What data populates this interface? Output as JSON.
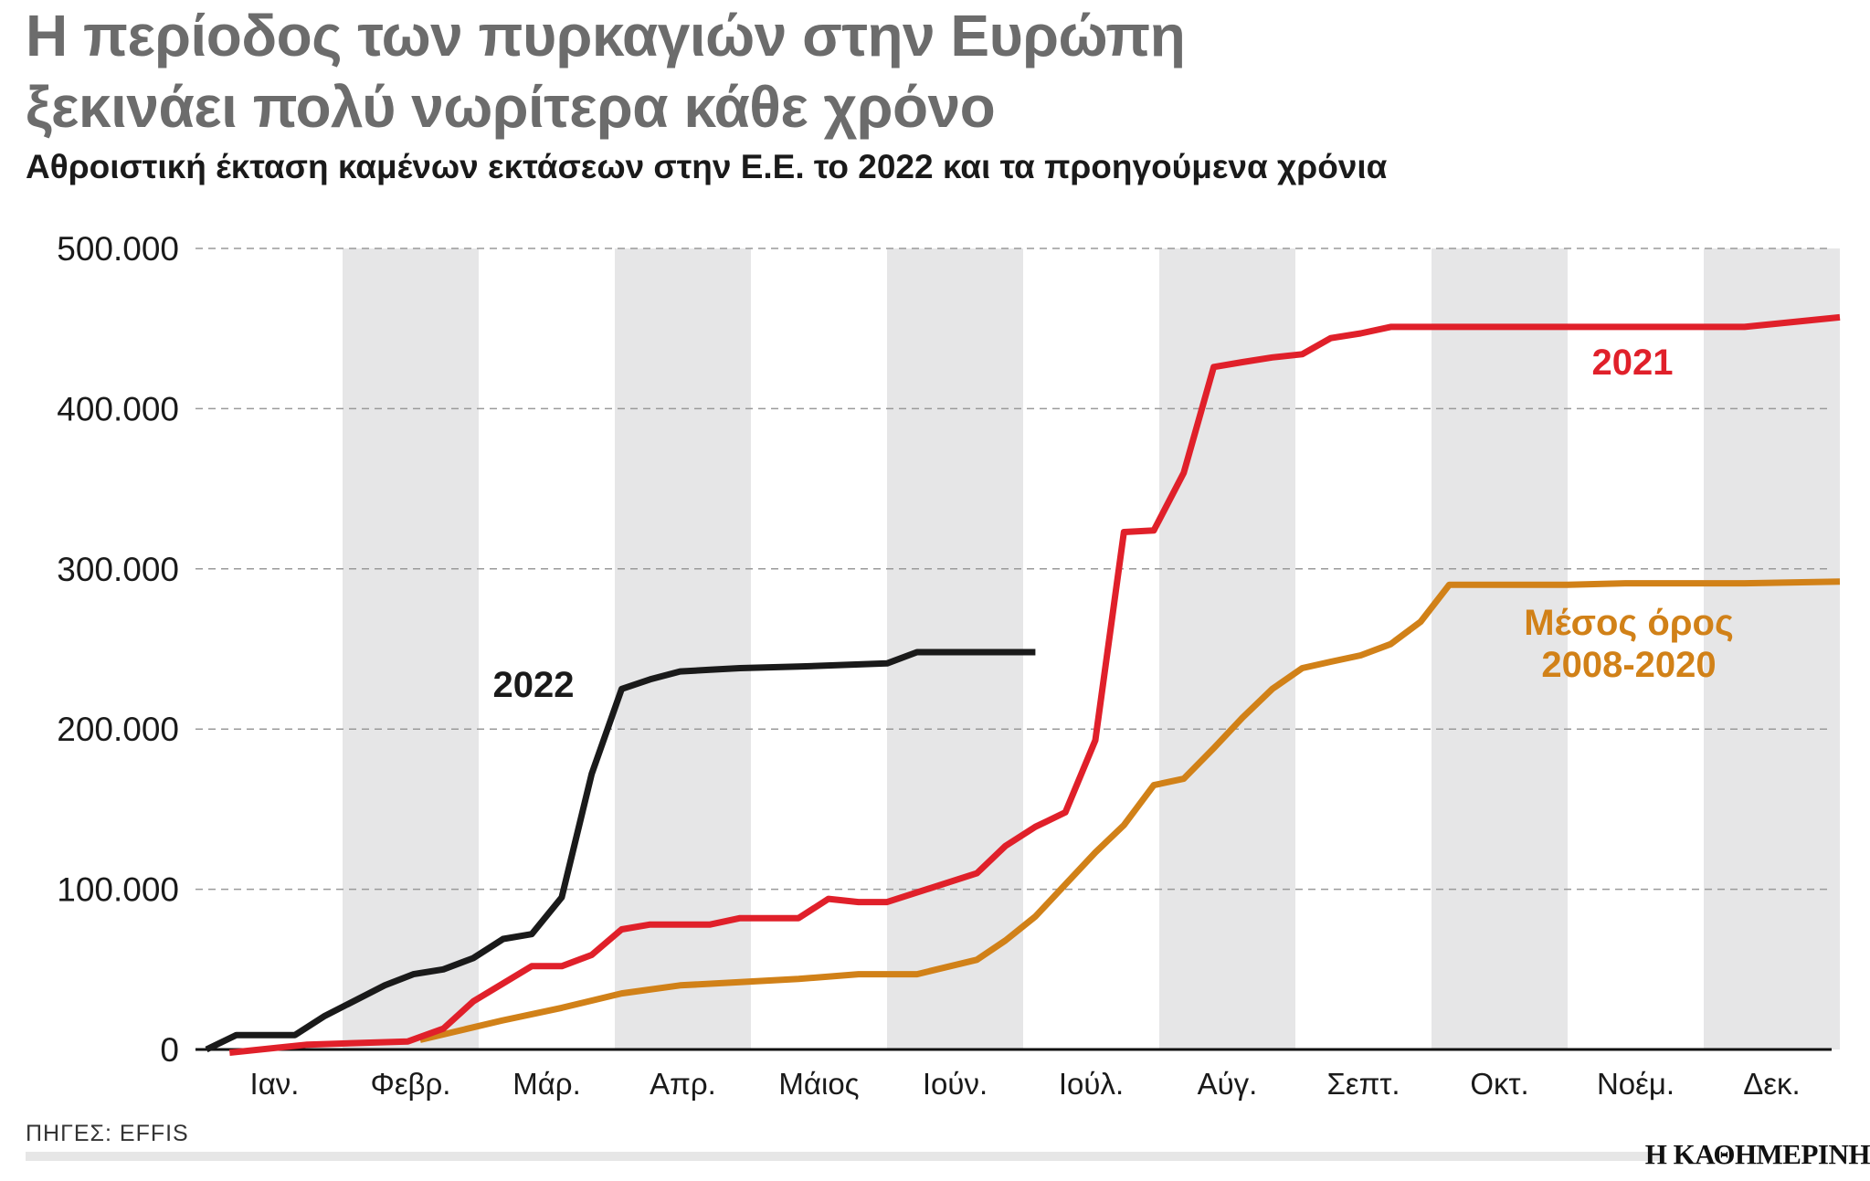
{
  "title_lines": [
    "Η περίοδος των πυρκαγιών στην Ευρώπη",
    "ξεκινάει πολύ νωρίτερα κάθε χρόνο"
  ],
  "subtitle": "Αθροιστική έκταση καμένων εκτάσεων στην Ε.Ε. το 2022 και τα προηγούμενα χρόνια",
  "source": "ΠΗΓΕΣ: EFFIS",
  "brand": "Η ΚΑΘΗΜΕΡΙΝΗ",
  "chart_data": {
    "type": "line",
    "x_unit": "month",
    "categories": [
      "Ιαν.",
      "Φεβρ.",
      "Μάρ.",
      "Απρ.",
      "Μάιος",
      "Ιούν.",
      "Ιούλ.",
      "Αύγ.",
      "Σεπτ.",
      "Οκτ.",
      "Νοέμ.",
      "Δεκ."
    ],
    "yticks": [
      0,
      100000,
      200000,
      300000,
      400000,
      500000
    ],
    "ytick_labels": [
      "0",
      "100.000",
      "200.000",
      "300.000",
      "400.000",
      "500.000"
    ],
    "ylim": [
      0,
      500000
    ],
    "xlim": [
      0,
      12
    ],
    "grid": "horizontal-dashed",
    "alternating_month_bands": true,
    "series": [
      {
        "name": "2022",
        "color": "#1a1a1a",
        "label_lines": [
          "2022"
        ],
        "x": [
          0.0,
          0.22,
          0.44,
          0.65,
          0.87,
          1.31,
          1.52,
          1.74,
          1.96,
          2.18,
          2.39,
          2.61,
          2.83,
          3.05,
          3.26,
          3.48,
          3.7,
          3.92,
          4.35,
          5.0,
          5.22,
          5.44,
          6.09
        ],
        "values": [
          0,
          9000,
          9000,
          9000,
          21000,
          40000,
          47000,
          50000,
          57000,
          69000,
          72000,
          95000,
          172000,
          225000,
          231000,
          236000,
          237000,
          238000,
          239000,
          241000,
          248000,
          248000,
          248000
        ]
      },
      {
        "name": "2021",
        "color": "#e0202a",
        "label_lines": [
          "2021"
        ],
        "x": [
          0.17,
          0.74,
          1.48,
          1.74,
          1.96,
          2.39,
          2.61,
          2.83,
          3.05,
          3.26,
          3.48,
          3.7,
          3.92,
          4.13,
          4.35,
          4.57,
          4.79,
          5.0,
          5.66,
          5.87,
          6.09,
          6.31,
          6.53,
          6.74,
          6.96,
          7.18,
          7.4,
          7.61,
          7.83,
          8.05,
          8.26,
          8.48,
          8.7,
          8.92,
          9.13,
          9.57,
          10.0,
          10.43,
          11.3,
          12.0
        ],
        "values": [
          -2000,
          3000,
          5000,
          13000,
          30000,
          52000,
          52000,
          59000,
          75000,
          78000,
          78000,
          78000,
          82000,
          82000,
          82000,
          94000,
          92000,
          92000,
          110000,
          127000,
          139000,
          148000,
          193000,
          323000,
          324000,
          360000,
          426000,
          429000,
          432000,
          434000,
          444000,
          447000,
          451000,
          451000,
          451000,
          451000,
          451000,
          451000,
          451000,
          457000
        ]
      },
      {
        "name": "Μέσος όρος 2008-2020",
        "color": "#d18118",
        "label_lines": [
          "Μέσος όρος",
          "2008-2020"
        ],
        "x": [
          1.57,
          2.17,
          2.61,
          3.05,
          3.48,
          3.92,
          4.35,
          4.79,
          5.22,
          5.66,
          5.87,
          6.09,
          6.31,
          6.53,
          6.74,
          6.96,
          7.18,
          7.4,
          7.61,
          7.83,
          8.05,
          8.26,
          8.48,
          8.7,
          8.92,
          9.13,
          9.35,
          9.57,
          10.0,
          10.43,
          10.87,
          11.3,
          12.0
        ],
        "values": [
          6000,
          18000,
          26000,
          35000,
          40000,
          42000,
          44000,
          47000,
          47000,
          56000,
          68000,
          83000,
          103000,
          123000,
          140000,
          165000,
          169000,
          188000,
          207000,
          225000,
          238000,
          242000,
          246000,
          253000,
          267000,
          290000,
          290000,
          290000,
          290000,
          291000,
          291000,
          291000,
          292000
        ]
      }
    ]
  },
  "colors": {
    "band": "#e6e6e7",
    "grid": "#9a9a9a",
    "axis": "#111111",
    "title": "#6c6c6c"
  }
}
